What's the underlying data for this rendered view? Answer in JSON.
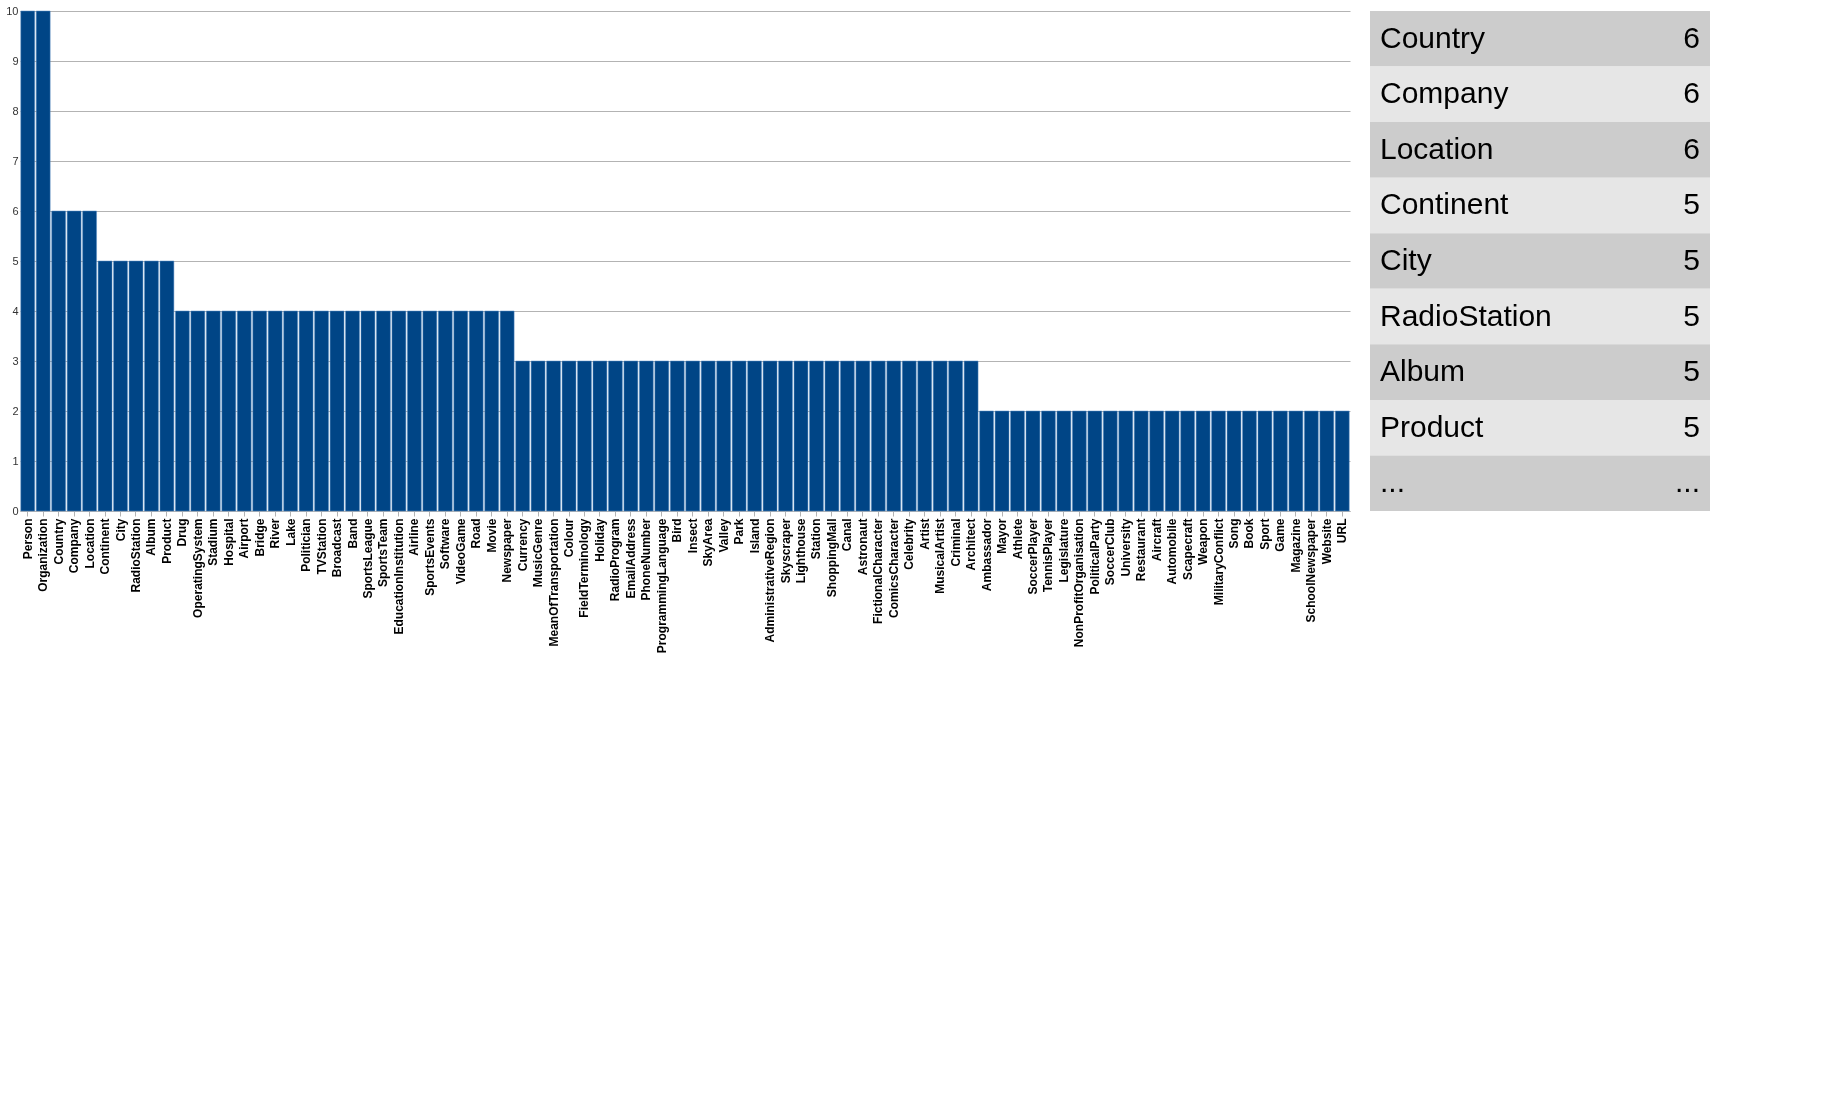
{
  "chart_data": {
    "type": "bar",
    "categories": [
      "Person",
      "Organization",
      "Country",
      "Company",
      "Location",
      "Continent",
      "City",
      "RadioStation",
      "Album",
      "Product",
      "Drug",
      "OperatingSystem",
      "Stadium",
      "Hospital",
      "Airport",
      "Bridge",
      "River",
      "Lake",
      "Politician",
      "TVStation",
      "Broadcast",
      "Band",
      "SportsLeague",
      "SportsTeam",
      "EducationInstitution",
      "Airline",
      "SportsEvents",
      "Software",
      "VideoGame",
      "Road",
      "Movie",
      "Newspaper",
      "Currency",
      "MusicGenre",
      "MeanOfTransportation",
      "Colour",
      "FieldTerminology",
      "Holiday",
      "RadioProgram",
      "EmailAddress",
      "PhoneNumber",
      "ProgrammingLanguage",
      "Bird",
      "Insect",
      "SkyArea",
      "Valley",
      "Park",
      "Island",
      "AdministrativeRegion",
      "Skyscraper",
      "Lighthouse",
      "Station",
      "ShoppingMall",
      "Canal",
      "Astronaut",
      "FictionalCharacter",
      "ComicsCharacter",
      "Celebrity",
      "Artist",
      "MusicalArtist",
      "Criminal",
      "Architect",
      "Ambassador",
      "Mayor",
      "Athlete",
      "SoccerPlayer",
      "TennisPlayer",
      "Legislature",
      "NonProfitOrganisation",
      "PoliticalParty",
      "SoccerClub",
      "University",
      "Restaurant",
      "Aircraft",
      "Automobile",
      "Scapecraft",
      "Weapon",
      "MilitaryConflict",
      "Song",
      "Book",
      "Sport",
      "Game",
      "Magazine",
      "SchoolNewspaper",
      "Website",
      "URL"
    ],
    "values": [
      10,
      10,
      6,
      6,
      6,
      5,
      5,
      5,
      5,
      5,
      4,
      4,
      4,
      4,
      4,
      4,
      4,
      4,
      4,
      4,
      4,
      4,
      4,
      4,
      4,
      4,
      4,
      4,
      4,
      4,
      4,
      4,
      3,
      3,
      3,
      3,
      3,
      3,
      3,
      3,
      3,
      3,
      3,
      3,
      3,
      3,
      3,
      3,
      3,
      3,
      3,
      3,
      3,
      3,
      3,
      3,
      3,
      3,
      3,
      3,
      3,
      3,
      2,
      2,
      2,
      2,
      2,
      2,
      2,
      2,
      2,
      2,
      2,
      2,
      2,
      2,
      2,
      2,
      2,
      2,
      2,
      2,
      2,
      2,
      2,
      2
    ],
    "color": "#004586",
    "ylim": [
      0,
      10
    ],
    "yticks": [
      0,
      1,
      2,
      3,
      4,
      5,
      6,
      7,
      8,
      9,
      10
    ],
    "grid": "y",
    "annotations": [
      "Country",
      "6",
      "Company",
      "6",
      "Location",
      "6",
      "Continent",
      "5",
      "City",
      "5",
      "RadioStation",
      "5",
      "Album",
      "5",
      "Product",
      "5",
      "...",
      "..."
    ]
  }
}
